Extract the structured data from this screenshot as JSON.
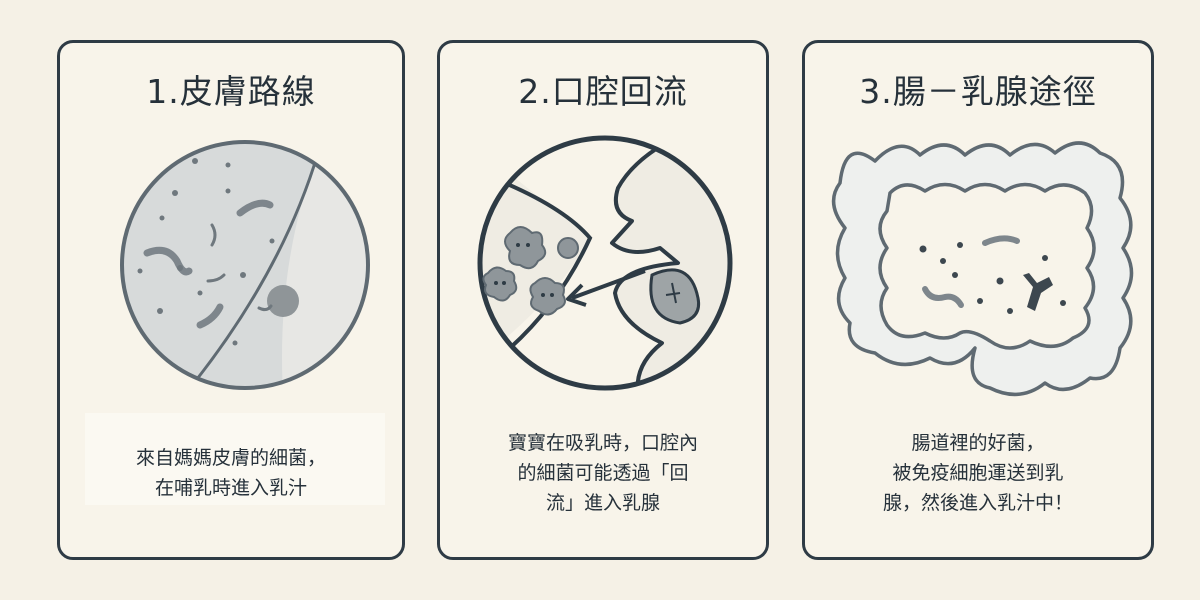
{
  "panels": [
    {
      "title": "1.皮膚路線",
      "caption_lines": [
        "來自媽媽皮膚的細菌，",
        "在哺乳時進入乳汁"
      ],
      "icon": "skin-magnified-bacteria"
    },
    {
      "title": "2.口腔回流",
      "caption_lines": [
        "寶寶在吸乳時，口腔內",
        "的細菌可能透過「回",
        "流」進入乳腺"
      ],
      "icon": "infant-mouth-backflow"
    },
    {
      "title": "3.腸－乳腺途徑",
      "caption_lines": [
        "腸道裡的好菌，",
        "被免疫細胞運送到乳",
        "腺，然後進入乳汁中！"
      ],
      "icon": "intestine-bacteria"
    }
  ],
  "colors": {
    "background": "#f5f1e6",
    "stroke": "#2e3b45",
    "skin_fill": "#d9dcdc",
    "bacteria": "#8a9196"
  }
}
